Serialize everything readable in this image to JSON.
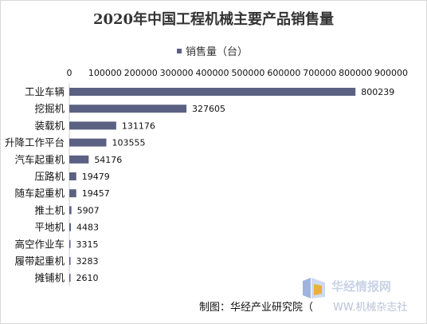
{
  "chart_data": {
    "type": "bar",
    "orientation": "horizontal",
    "title": "2020年中国工程机械主要产品销售量",
    "legend": {
      "position": "top",
      "label": "销售量（台）"
    },
    "categories": [
      "工业车辆",
      "挖掘机",
      "装载机",
      "升降工作平台",
      "汽车起重机",
      "压路机",
      "随车起重机",
      "推土机",
      "平地机",
      "高空作业车",
      "履带起重机",
      "摊铺机"
    ],
    "series": [
      {
        "name": "销售量（台）",
        "values": [
          800239,
          327605,
          131176,
          103555,
          54176,
          19479,
          19457,
          5907,
          4483,
          3315,
          3283,
          2610
        ]
      }
    ],
    "xlim": [
      0,
      900000
    ],
    "xticks": [
      "0",
      "100000",
      "200000",
      "300000",
      "400000",
      "500000",
      "600000",
      "700000",
      "800000",
      "900000"
    ],
    "grid": false,
    "colors": {
      "bar": "#5b6183"
    }
  },
  "footer": {
    "source": "制图：华经产业研究院（",
    "watermark": "华经情报网",
    "watermark_tail": "WW.机械杂志社"
  }
}
